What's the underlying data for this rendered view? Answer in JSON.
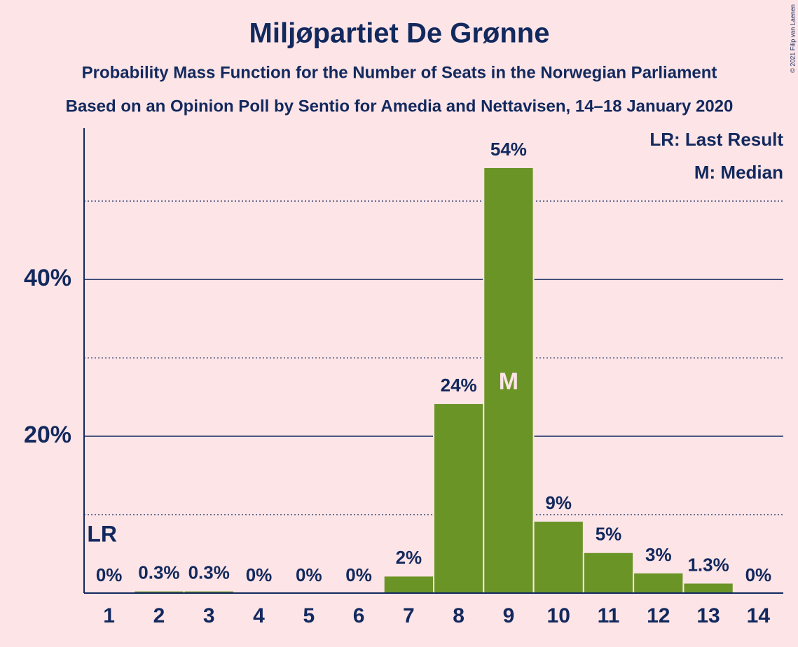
{
  "chart_data": {
    "type": "bar",
    "title": "Miljøpartiet De Grønne",
    "subtitle": "Probability Mass Function for the Number of Seats in the Norwegian Parliament",
    "subtitle2": "Based on an Opinion Poll by Sentio for Amedia and Nettavisen, 14–18 January 2020",
    "copyright": "© 2021 Filip van Laenen",
    "categories": [
      "1",
      "2",
      "3",
      "4",
      "5",
      "6",
      "7",
      "8",
      "9",
      "10",
      "11",
      "12",
      "13",
      "14"
    ],
    "values": [
      0,
      0.3,
      0.3,
      0,
      0,
      0,
      2.2,
      24.2,
      54.3,
      9.2,
      5.2,
      2.6,
      1.3,
      0
    ],
    "value_labels": [
      "0%",
      "0.3%",
      "0.3%",
      "0%",
      "0%",
      "0%",
      "2%",
      "24%",
      "54%",
      "9%",
      "5%",
      "3%",
      "1.3%",
      "0%"
    ],
    "color": "#6b9427",
    "ylim": [
      0,
      59.3
    ],
    "yticks": [
      {
        "value": 20,
        "label": "20%"
      },
      {
        "value": 40,
        "label": "40%"
      }
    ],
    "minor_yticks": [
      10,
      30,
      50
    ],
    "grid": true,
    "last_result": {
      "label": "LR",
      "category": "1"
    },
    "median": {
      "label": "M",
      "category": "9"
    },
    "legend": [
      "LR: Last Result",
      "M: Median"
    ],
    "legend_position": "top-right"
  }
}
